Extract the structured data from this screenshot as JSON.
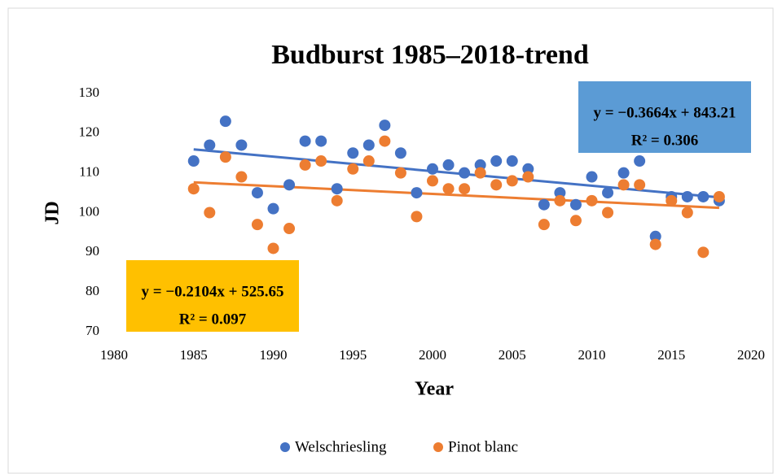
{
  "chart_data": {
    "type": "scatter",
    "title": "Budburst 1985–2018-trend",
    "x_label": "Year",
    "y_label": "JD",
    "x": [
      1985,
      1986,
      1987,
      1988,
      1989,
      1990,
      1991,
      1992,
      1993,
      1994,
      1995,
      1996,
      1997,
      1998,
      1999,
      2000,
      2001,
      2002,
      2003,
      2004,
      2005,
      2006,
      2007,
      2008,
      2009,
      2010,
      2011,
      2012,
      2013,
      2014,
      2015,
      2016,
      2017,
      2018
    ],
    "series": [
      {
        "name": "Welschriesling",
        "color": "#4472c4",
        "values": [
          113,
          117,
          123,
          117,
          105,
          101,
          107,
          118,
          118,
          106,
          115,
          117,
          122,
          115,
          105,
          111,
          112,
          110,
          112,
          113,
          113,
          111,
          102,
          105,
          102,
          109,
          105,
          110,
          113,
          94,
          104,
          104,
          104,
          103
        ],
        "trend_color": "#4472c4",
        "annotation": [
          "y = −0.3664x + 843.21",
          "R² = 0.306"
        ],
        "annotation_color": "#5b9bd5"
      },
      {
        "name": "Pinot blanc",
        "color": "#ed7d31",
        "values": [
          106,
          100,
          114,
          109,
          97,
          91,
          96,
          112,
          113,
          103,
          111,
          113,
          118,
          110,
          99,
          108,
          106,
          106,
          110,
          107,
          108,
          109,
          97,
          103,
          98,
          103,
          100,
          107,
          107,
          92,
          103,
          100,
          90,
          104
        ],
        "trend_color": "#ed7d31",
        "annotation": [
          "y = −0.2104x + 525.65",
          "R² = 0.097"
        ],
        "annotation_color": "#ffc000"
      }
    ],
    "xlim": [
      1980,
      2020
    ],
    "xticks": [
      1980,
      1985,
      1990,
      1995,
      2000,
      2005,
      2010,
      2015,
      2020
    ],
    "ylim": [
      70,
      130
    ],
    "yticks": [
      70,
      80,
      90,
      100,
      110,
      120,
      130
    ],
    "legend": "bottom"
  }
}
